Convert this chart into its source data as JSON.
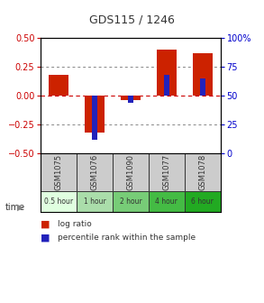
{
  "title": "GDS115 / 1246",
  "samples": [
    "GSM1075",
    "GSM1076",
    "GSM1090",
    "GSM1077",
    "GSM1078"
  ],
  "time_labels": [
    "0.5 hour",
    "1 hour",
    "2 hour",
    "4 hour",
    "6 hour"
  ],
  "time_colors": [
    "#e0ffe0",
    "#aaddaa",
    "#77cc77",
    "#44bb44",
    "#22aa22"
  ],
  "log_ratios": [
    0.18,
    -0.32,
    -0.04,
    0.4,
    0.37
  ],
  "percentile_ranks_pct": [
    50,
    12,
    44,
    68,
    65
  ],
  "ylim_left": [
    -0.5,
    0.5
  ],
  "ylim_right": [
    0,
    100
  ],
  "yticks_left": [
    -0.5,
    -0.25,
    0,
    0.25,
    0.5
  ],
  "yticks_right": [
    0,
    25,
    50,
    75,
    100
  ],
  "bar_color_red": "#cc2200",
  "bar_color_blue": "#2222bb",
  "bg_color": "#ffffff",
  "left_tick_color": "#cc0000",
  "right_tick_color": "#0000cc",
  "sample_bg": "#cccccc",
  "legend_red": "log ratio",
  "legend_blue": "percentile rank within the sample"
}
